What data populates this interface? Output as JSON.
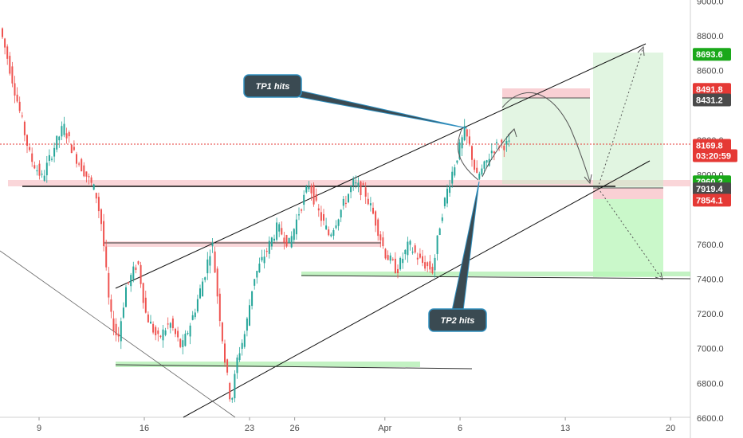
{
  "chart_data": {
    "type": "candlestick",
    "y_ticks": [
      "9000.0",
      "8800.0",
      "8600.0",
      "8200.0",
      "8000.0",
      "7600.0",
      "7400.0",
      "7200.0",
      "7000.0",
      "6800.0",
      "6600.0"
    ],
    "x_ticks": [
      {
        "label": "9",
        "day": 9
      },
      {
        "label": "16",
        "day": 16
      },
      {
        "label": "23",
        "day": 23
      },
      {
        "label": "26",
        "day": 26
      },
      {
        "label": "Apr",
        "day": 32
      },
      {
        "label": "6",
        "day": 37
      },
      {
        "label": "13",
        "day": 44
      },
      {
        "label": "20",
        "day": 51
      }
    ],
    "ylim": [
      6600,
      9000
    ],
    "price_tags": [
      {
        "label": "8693.6",
        "value": 8693.6,
        "color": "#1aa81a"
      },
      {
        "label": "8491.8",
        "value": 8491.8,
        "color": "#e53935"
      },
      {
        "label": "8431.2",
        "value": 8431.2,
        "color": "#4a4a4a"
      },
      {
        "label": "8169.8",
        "value": 8169.8,
        "color": "#e53935"
      },
      {
        "label": "03:20:59",
        "value": 8110,
        "color": "#e53935"
      },
      {
        "label": "7960.2",
        "value": 7960.2,
        "color": "#1aa81a"
      },
      {
        "label": "7919.4",
        "value": 7919.4,
        "color": "#4a4a4a"
      },
      {
        "label": "7854.1",
        "value": 7854.1,
        "color": "#e53935"
      }
    ],
    "annotations": [
      {
        "label": "TP1 hits"
      },
      {
        "label": "TP2 hits"
      }
    ],
    "colors": {
      "up": "#26a69a",
      "down": "#ef5350",
      "target_green": "#1aa81a"
    }
  }
}
